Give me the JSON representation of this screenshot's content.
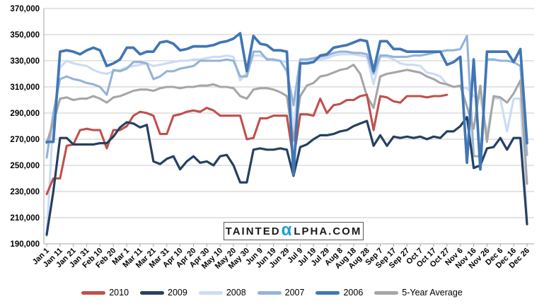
{
  "watermark": {
    "pre": "TAINTED",
    "alpha": "α",
    "post": "LPHA.COM",
    "alpha_color": "#1F9CD8",
    "text_color": "#1A1A1A"
  },
  "chart_data": {
    "type": "line",
    "title": "",
    "xlabel": "",
    "ylabel": "",
    "grid": true,
    "legend_position": "bottom",
    "y_axis": {
      "min": 190000,
      "max": 370000,
      "step": 20000,
      "tick_labels": [
        "190,000",
        "210,000",
        "230,000",
        "250,000",
        "270,000",
        "290,000",
        "310,000",
        "330,000",
        "350,000",
        "370,000"
      ]
    },
    "x_axis": {
      "tick_labels": [
        "Jan 1",
        "Jan 11",
        "Jan 21",
        "Jan 31",
        "Feb 10",
        "Feb 20",
        "Mar 1",
        "Mar 11",
        "Mar 21",
        "Mar 31",
        "Apr 10",
        "Apr 20",
        "Apr 30",
        "May 10",
        "May 20",
        "May 30",
        "Jun 9",
        "Jun 19",
        "Jun 29",
        "Jul 9",
        "Jul 19",
        "Jul 29",
        "Aug 8",
        "Aug 18",
        "Aug 28",
        "Sep 7",
        "Sep 17",
        "Sep 27",
        "Oct 7",
        "Oct 17",
        "Oct 27",
        "Nov 6",
        "Nov 16",
        "Nov 26",
        "Dec 6",
        "Dec 16",
        "Dec 26"
      ],
      "tick_day_spacing": 10,
      "day_range": [
        0,
        364
      ]
    },
    "sample_days": [
      0,
      5,
      10,
      15,
      20,
      25,
      30,
      35,
      40,
      45,
      50,
      55,
      60,
      65,
      70,
      75,
      80,
      85,
      90,
      95,
      100,
      105,
      110,
      115,
      120,
      125,
      130,
      135,
      140,
      145,
      150,
      155,
      160,
      165,
      170,
      175,
      180,
      185,
      190,
      195,
      200,
      205,
      210,
      215,
      220,
      225,
      230,
      235,
      240,
      245,
      250,
      255,
      260,
      265,
      270,
      275,
      280,
      285,
      290,
      295,
      300,
      305,
      310,
      315,
      320,
      325,
      330,
      335,
      340,
      345,
      350,
      355,
      360
    ],
    "values_scale": 1000,
    "draw_order": [
      2,
      3,
      5,
      0,
      1,
      4
    ],
    "series": [
      {
        "name": "2010",
        "color": "#C0504D",
        "stroke_width": 3.1,
        "values": [
          228,
          240,
          240,
          265,
          266,
          277,
          278,
          277,
          277,
          263,
          277,
          277,
          280,
          288,
          291,
          290,
          288,
          274,
          274,
          288,
          289,
          291,
          292,
          291,
          294,
          292,
          288,
          288,
          288,
          288,
          270,
          271,
          286,
          286,
          288,
          288,
          288,
          254,
          289,
          289,
          288,
          301,
          290,
          296,
          297,
          300,
          300,
          303,
          304,
          277,
          303,
          302,
          299,
          298,
          303,
          303,
          303,
          302,
          303,
          303,
          304,
          null,
          null,
          null,
          null,
          null,
          null,
          null,
          null,
          null,
          null,
          null,
          null
        ]
      },
      {
        "name": "2009",
        "color": "#254061",
        "stroke_width": 3.2,
        "values": [
          197,
          230,
          271,
          271,
          266,
          266,
          266,
          266,
          267,
          267,
          272,
          279,
          283,
          282,
          279,
          281,
          253,
          251,
          255,
          257,
          247,
          253,
          257,
          252,
          253,
          250,
          257,
          258,
          250,
          237,
          237,
          262,
          263,
          262,
          262,
          263,
          262,
          242,
          264,
          266,
          270,
          273,
          273,
          274,
          276,
          277,
          280,
          282,
          284,
          265,
          273,
          265,
          272,
          271,
          272,
          271,
          272,
          270,
          272,
          271,
          276,
          276,
          280,
          287,
          248,
          250,
          263,
          264,
          271,
          262,
          271,
          271,
          205
        ]
      },
      {
        "name": "2008",
        "color": "#CBDCF2",
        "stroke_width": 3.1,
        "values": [
          196,
          286,
          325,
          330,
          328,
          327,
          326,
          323,
          321,
          320,
          322,
          323,
          325,
          326,
          327,
          328,
          326,
          327,
          328,
          329,
          330,
          330,
          331,
          331,
          332,
          333,
          333,
          334,
          333,
          315,
          321,
          334,
          334,
          332,
          330,
          330,
          329,
          276,
          330,
          330,
          331,
          331,
          332,
          334,
          335,
          335,
          335,
          334,
          333,
          312,
          333,
          333,
          331,
          328,
          327,
          327,
          326,
          321,
          320,
          318,
          312,
          310,
          310,
          309,
          303,
          302,
          274,
          301,
          301,
          276,
          301,
          301,
          208
        ]
      },
      {
        "name": "2007",
        "color": "#95B3D7",
        "stroke_width": 3.1,
        "values": [
          256,
          290,
          316,
          318,
          316,
          315,
          313,
          312,
          310,
          304,
          323,
          322,
          324,
          329,
          329,
          328,
          316,
          318,
          322,
          322,
          324,
          325,
          326,
          330,
          330,
          330,
          330,
          331,
          330,
          318,
          318,
          337,
          337,
          331,
          331,
          330,
          322,
          296,
          331,
          331,
          332,
          333,
          334,
          336,
          337,
          337,
          336,
          336,
          335,
          320,
          334,
          334,
          333,
          333,
          333,
          334,
          334,
          335,
          336,
          337,
          338,
          338,
          339,
          349,
          257,
          257,
          331,
          331,
          330,
          330,
          329,
          326,
          258
        ]
      },
      {
        "name": "2006",
        "color": "#4176B5",
        "stroke_width": 3.7,
        "values": [
          268,
          268,
          337,
          338,
          337,
          335,
          338,
          340,
          338,
          326,
          328,
          331,
          340,
          340,
          335,
          337,
          337,
          344,
          345,
          343,
          338,
          339,
          341,
          341,
          341,
          342,
          344,
          345,
          347,
          351,
          322,
          349,
          343,
          342,
          338,
          338,
          337,
          243,
          328,
          328,
          329,
          334,
          335,
          340,
          341,
          342,
          344,
          346,
          345,
          322,
          345,
          345,
          339,
          339,
          337,
          337,
          337,
          337,
          337,
          337,
          327,
          329,
          333,
          252,
          331,
          247,
          337,
          337,
          337,
          337,
          329,
          339,
          267
        ]
      },
      {
        "name": "5-Year Average",
        "color": "#A6A6A6",
        "stroke_width": 3.1,
        "values": [
          267,
          283,
          301,
          302,
          300,
          301,
          301,
          303,
          301,
          298,
          302,
          303,
          305,
          307,
          308,
          308,
          307,
          309,
          310,
          310,
          309,
          310,
          310,
          311,
          311,
          312,
          310,
          310,
          309,
          303,
          301,
          308,
          309,
          309,
          308,
          306,
          303,
          269,
          303,
          311,
          313,
          318,
          319,
          321,
          323,
          324,
          327,
          320,
          303,
          294,
          318,
          320,
          321,
          322,
          323,
          322,
          321,
          318,
          316,
          313,
          312,
          310,
          311,
          295,
          278,
          311,
          268,
          303,
          302,
          298,
          305,
          315,
          236
        ]
      }
    ],
    "colors": {
      "gridline": "#C8C8C8",
      "axis": "#A6A6A6",
      "tick_text": "#000000"
    }
  }
}
